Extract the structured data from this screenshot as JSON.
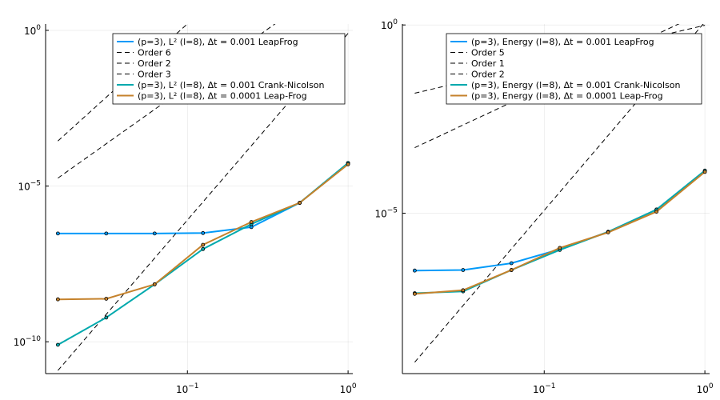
{
  "chart_data": [
    {
      "type": "line",
      "xscale": "log10",
      "yscale": "log10",
      "xlim": [
        0.0131,
        1.07
      ],
      "ylim": [
        9.5e-12,
        1.6
      ],
      "grid": true,
      "legend_placement": "top-right",
      "x_ticks": [
        {
          "value": 0.1,
          "base": "10",
          "exp": "−1"
        },
        {
          "value": 1,
          "base": "10",
          "exp": "0"
        }
      ],
      "y_ticks": [
        {
          "value": 1e-10,
          "base": "10",
          "exp": "−10"
        },
        {
          "value": 1e-05,
          "base": "10",
          "exp": "−5"
        },
        {
          "value": 1,
          "base": "10",
          "exp": "0"
        }
      ],
      "series": [
        {
          "name": "(p=3), L² (l=8), Δt = 0.001 LeapFrog",
          "color": "#009af9",
          "style": "solid",
          "markers": true,
          "x": [
            0.015625,
            0.03125,
            0.0625,
            0.125,
            0.25,
            0.5,
            1
          ],
          "y": [
            3e-07,
            3e-07,
            3e-07,
            3.1e-07,
            4.8e-07,
            2.9e-06,
            5.5e-05
          ]
        },
        {
          "name": "Order 6",
          "color": "#000000",
          "style": "dash",
          "markers": false,
          "x": [
            0.015625,
            1
          ],
          "y": [
            1.2e-11,
            0.8
          ]
        },
        {
          "name": "Order 2",
          "color": "#000000",
          "style": "dash",
          "markers": false,
          "x": [
            0.015625,
            1
          ],
          "y": [
            1.8e-05,
            75
          ]
        },
        {
          "name": "Order 3",
          "color": "#000000",
          "style": "dash",
          "markers": false,
          "x": [
            0.015625,
            1
          ],
          "y": [
            0.00028,
            75000
          ]
        },
        {
          "name": "(p=3), L² (l=8), Δt = 0.001 Crank-Nicolson",
          "color": "#00a9ad",
          "style": "solid",
          "markers": true,
          "x": [
            0.015625,
            0.03125,
            0.0625,
            0.125,
            0.25,
            0.5,
            1
          ],
          "y": [
            8e-11,
            6e-10,
            7e-09,
            9.5e-08,
            6e-07,
            2.9e-06,
            5.5e-05
          ]
        },
        {
          "name": "(p=3), L² (l=8), Δt = 0.0001 Leap-Frog",
          "color": "#c5822c",
          "style": "solid",
          "markers": true,
          "x": [
            0.015625,
            0.03125,
            0.0625,
            0.125,
            0.25,
            0.5,
            1
          ],
          "y": [
            2.3e-09,
            2.4e-09,
            7e-09,
            1.3e-07,
            7e-07,
            2.9e-06,
            5e-05
          ]
        }
      ]
    },
    {
      "type": "line",
      "xscale": "log10",
      "yscale": "log10",
      "xlim": [
        0.0131,
        1.07
      ],
      "ylim": [
        5.5e-10,
        1.06
      ],
      "grid": true,
      "legend_placement": "top-right",
      "x_ticks": [
        {
          "value": 0.1,
          "base": "10",
          "exp": "−1"
        },
        {
          "value": 1,
          "base": "10",
          "exp": "0"
        }
      ],
      "y_ticks": [
        {
          "value": 1e-05,
          "base": "10",
          "exp": "−5"
        },
        {
          "value": 1,
          "base": "10",
          "exp": "0"
        }
      ],
      "series": [
        {
          "name": "(p=3), Energy (l=8), Δt = 0.001 LeapFrog",
          "color": "#009af9",
          "style": "solid",
          "markers": true,
          "x": [
            0.015625,
            0.03125,
            0.0625,
            0.125,
            0.25,
            0.5,
            1
          ],
          "y": [
            3e-07,
            3.1e-07,
            4.7e-07,
            1.1e-06,
            3.2e-06,
            1.25e-05,
            0.000135
          ]
        },
        {
          "name": "Order 5",
          "color": "#000000",
          "style": "dash",
          "markers": false,
          "x": [
            0.015625,
            1
          ],
          "y": [
            1.1e-09,
            1.2
          ]
        },
        {
          "name": "Order 1",
          "color": "#000000",
          "style": "dash",
          "markers": false,
          "x": [
            0.015625,
            1
          ],
          "y": [
            0.0154,
            0.98
          ]
        },
        {
          "name": "Order 2",
          "color": "#000000",
          "style": "dash",
          "markers": false,
          "x": [
            0.015625,
            1
          ],
          "y": [
            0.00055,
            2.25
          ]
        },
        {
          "name": "(p=3), Energy (l=8), Δt = 0.001 Crank-Nicolson",
          "color": "#00a9ad",
          "style": "solid",
          "markers": true,
          "x": [
            0.015625,
            0.03125,
            0.0625,
            0.125,
            0.25,
            0.5,
            1
          ],
          "y": [
            7.5e-08,
            8.4e-08,
            3.1e-07,
            1.06e-06,
            3.2e-06,
            1.25e-05,
            0.000135
          ]
        },
        {
          "name": "(p=3), Energy (l=8), Δt = 0.0001 Leap-Frog",
          "color": "#c5822c",
          "style": "solid",
          "markers": true,
          "x": [
            0.015625,
            0.03125,
            0.0625,
            0.125,
            0.25,
            0.5,
            1
          ],
          "y": [
            7.2e-08,
            9e-08,
            3.1e-07,
            1.2e-06,
            3.1e-06,
            1.1e-05,
            0.000125
          ]
        }
      ]
    }
  ]
}
